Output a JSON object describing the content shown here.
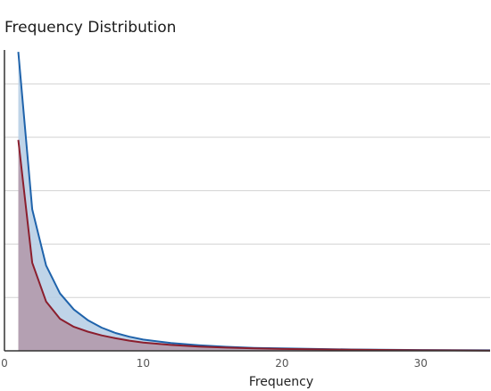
{
  "chart_data": {
    "type": "area",
    "title": "Frequency Distribution",
    "xlabel": "Frequency",
    "ylabel": "",
    "xlim": [
      0,
      35
    ],
    "ylim": [
      0,
      1
    ],
    "x_ticks": [
      0,
      10,
      20,
      30
    ],
    "x_tick_labels": [
      "0",
      "10",
      "20",
      "30"
    ],
    "y_gridlines": [
      0.2,
      0.4,
      0.6,
      0.8
    ],
    "grid": true,
    "legend": "none",
    "series": [
      {
        "color": "#1f63ab",
        "fill": "#b8cfe6",
        "x": [
          1,
          2,
          3,
          4,
          5,
          6,
          7,
          8,
          9,
          10,
          12,
          14,
          16,
          18,
          20,
          25,
          30,
          35
        ],
        "y": [
          1.12,
          0.53,
          0.32,
          0.215,
          0.155,
          0.115,
          0.087,
          0.067,
          0.053,
          0.042,
          0.029,
          0.021,
          0.015,
          0.011,
          0.009,
          0.005,
          0.003,
          0.002
        ]
      },
      {
        "color": "#8b1e2d",
        "fill": "#b39aac",
        "x": [
          1,
          2,
          3,
          4,
          5,
          6,
          7,
          8,
          9,
          10,
          12,
          14,
          16,
          18,
          20,
          25,
          30,
          35
        ],
        "y": [
          0.79,
          0.33,
          0.185,
          0.12,
          0.09,
          0.072,
          0.058,
          0.047,
          0.038,
          0.031,
          0.022,
          0.016,
          0.012,
          0.009,
          0.007,
          0.004,
          0.002,
          0.001
        ]
      }
    ]
  }
}
